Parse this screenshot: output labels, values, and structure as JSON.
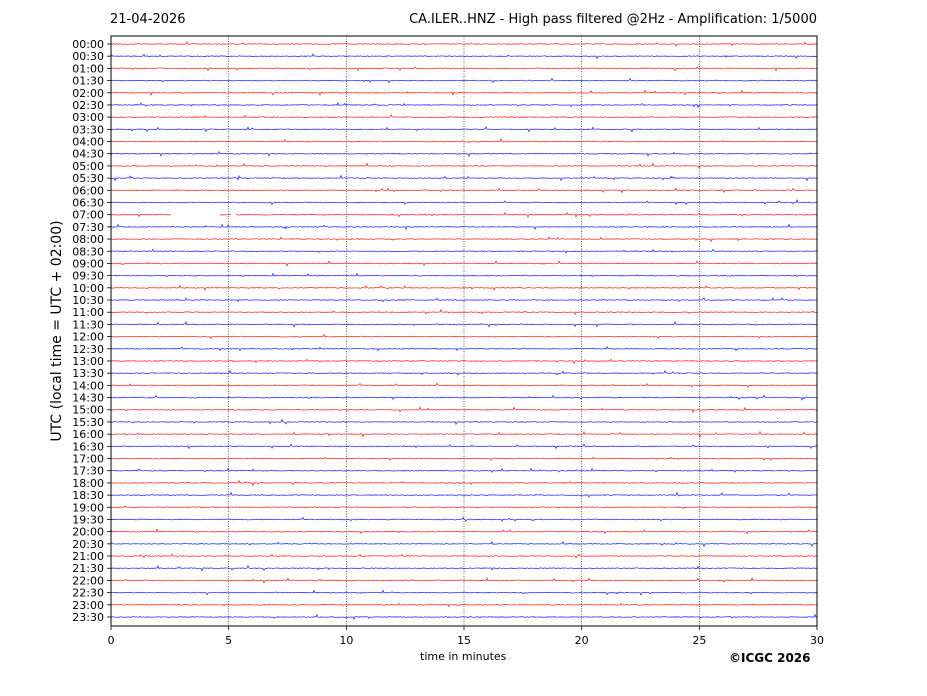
{
  "header": {
    "date": "21-04-2026",
    "title": "CA.ILER..HNZ - High pass filtered @2Hz - Amplification: 1/5000"
  },
  "copyright": "©ICGC 2026",
  "chart_data": {
    "type": "line",
    "subtype": "helicorder",
    "xlabel": "time in minutes",
    "ylabel": "UTC (local time = UTC + 02:00)",
    "xlim": [
      0,
      30
    ],
    "xticks": [
      0,
      5,
      10,
      15,
      20,
      25,
      30
    ],
    "grid": "vertical dotted at every 5 minutes",
    "colors": [
      "#ff0000",
      "#0000ff"
    ],
    "rows": [
      "00:00",
      "00:30",
      "01:00",
      "01:30",
      "02:00",
      "02:30",
      "03:00",
      "03:30",
      "04:00",
      "04:30",
      "05:00",
      "05:30",
      "06:00",
      "06:30",
      "07:00",
      "07:30",
      "08:00",
      "08:30",
      "09:00",
      "09:30",
      "10:00",
      "10:30",
      "11:00",
      "11:30",
      "12:00",
      "12:30",
      "13:00",
      "13:30",
      "14:00",
      "14:30",
      "15:00",
      "15:30",
      "16:00",
      "16:30",
      "17:00",
      "17:30",
      "18:00",
      "18:30",
      "19:00",
      "19:30",
      "20:00",
      "20:30",
      "21:00",
      "21:30",
      "22:00",
      "22:30",
      "23:00",
      "23:30"
    ],
    "gaps": [
      {
        "row": "07:00",
        "from_min": 2.55,
        "to_min": 4.6
      },
      {
        "row": "07:00",
        "from_min": 5.1,
        "to_min": 5.3
      }
    ]
  }
}
